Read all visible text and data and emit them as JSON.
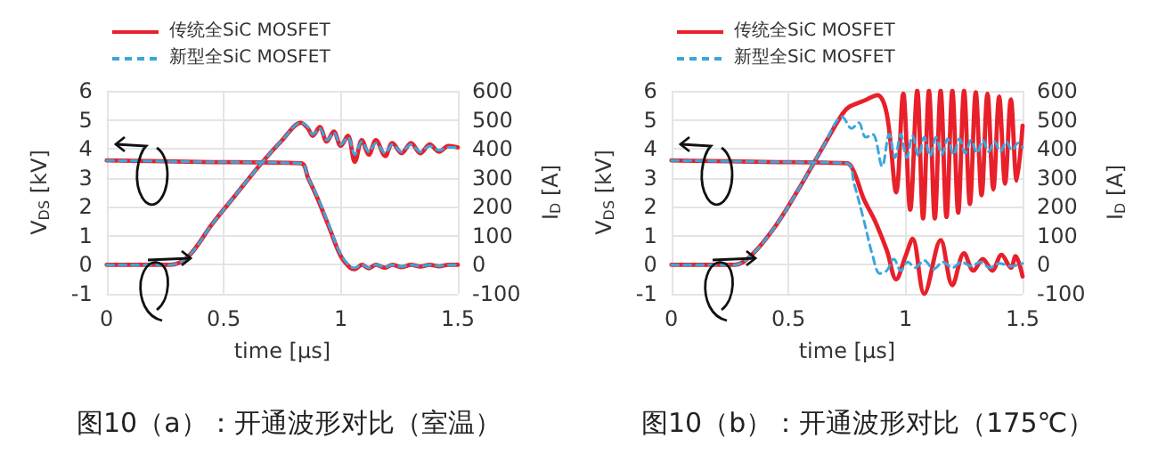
{
  "chart_data": [
    {
      "type": "line",
      "title": "图10（a）：开通波形对比（室温）",
      "xlabel": "time [µs]",
      "ylabel": "V$_{DS}$ [kV]",
      "y2label": "I$_{D}$ [A]",
      "xlim": [
        0,
        1.5
      ],
      "xticks": [
        0,
        0.5,
        1,
        1.5
      ],
      "ylim": [
        -1,
        6
      ],
      "yticks": [
        -1,
        0,
        1,
        2,
        3,
        4,
        5,
        6
      ],
      "y2lim": [
        -100,
        600
      ],
      "y2ticks": [
        -100,
        0,
        100,
        200,
        300,
        400,
        500,
        600
      ],
      "grid": true,
      "legend": "top left",
      "marker": "none",
      "series": [
        {
          "name": "传统全SiC MOSFET",
          "color": "#e8202a",
          "line_style": "solid",
          "x": [
            0,
            0.4,
            0.83,
            0.86,
            0.9,
            0.95,
            1.0,
            1.04,
            1.06,
            1.09,
            1.12,
            1.15,
            1.19,
            1.22,
            1.26,
            1.3,
            1.34,
            1.38,
            1.42,
            1.46,
            1.5
          ],
          "values": [
            3.6,
            3.55,
            3.5,
            3.0,
            2.3,
            1.3,
            0.3,
            -0.1,
            -0.15,
            0.0,
            -0.12,
            0.0,
            -0.1,
            0.0,
            -0.08,
            0.0,
            -0.06,
            0.0,
            -0.05,
            0.0,
            0.0
          ]
        },
        {
          "name": "新型全SiC MOSFET",
          "color": "#3aa6dd",
          "line_style": "dashed",
          "x": [
            0,
            0.4,
            0.83,
            0.86,
            0.9,
            0.95,
            1.0,
            1.04,
            1.06,
            1.09,
            1.12,
            1.15,
            1.19,
            1.22,
            1.26,
            1.3,
            1.34,
            1.38,
            1.42,
            1.46,
            1.5
          ],
          "values": [
            3.6,
            3.55,
            3.5,
            3.0,
            2.35,
            1.35,
            0.35,
            -0.05,
            -0.1,
            0.0,
            -0.1,
            0.0,
            -0.08,
            0.0,
            -0.06,
            0.0,
            -0.05,
            0.0,
            -0.04,
            0.0,
            0.0
          ]
        },
        {
          "color": "#e8202a",
          "line_style": "solid",
          "axis": "y2",
          "x": [
            0,
            0.27,
            0.35,
            0.45,
            0.55,
            0.65,
            0.75,
            0.83,
            0.86,
            0.88,
            0.91,
            0.94,
            0.97,
            1.0,
            1.03,
            1.06,
            1.09,
            1.12,
            1.15,
            1.19,
            1.22,
            1.26,
            1.3,
            1.34,
            1.38,
            1.42,
            1.46,
            1.5
          ],
          "values": [
            0,
            0,
            30,
            140,
            240,
            340,
            430,
            490,
            470,
            445,
            475,
            425,
            460,
            410,
            445,
            355,
            430,
            380,
            430,
            375,
            420,
            385,
            420,
            385,
            415,
            390,
            410,
            405
          ]
        },
        {
          "color": "#3aa6dd",
          "line_style": "dashed",
          "axis": "y2",
          "x": [
            0,
            0.27,
            0.35,
            0.45,
            0.55,
            0.65,
            0.75,
            0.83,
            0.86,
            0.88,
            0.91,
            0.94,
            0.97,
            1.0,
            1.03,
            1.06,
            1.09,
            1.12,
            1.15,
            1.19,
            1.22,
            1.26,
            1.3,
            1.34,
            1.38,
            1.42,
            1.46,
            1.5
          ],
          "values": [
            0,
            0,
            30,
            140,
            240,
            340,
            430,
            490,
            475,
            450,
            470,
            430,
            455,
            415,
            440,
            380,
            425,
            390,
            420,
            385,
            415,
            390,
            415,
            390,
            410,
            395,
            405,
            405
          ]
        }
      ]
    },
    {
      "type": "line",
      "title": "图10（b）：开通波形对比（175℃）",
      "xlabel": "time [µs]",
      "ylabel": "V$_{DS}$ [kV]",
      "y2label": "I$_{D}$ [A]",
      "xlim": [
        0,
        1.5
      ],
      "xticks": [
        0,
        0.5,
        1,
        1.5
      ],
      "ylim": [
        -1,
        6
      ],
      "yticks": [
        -1,
        0,
        1,
        2,
        3,
        4,
        5,
        6
      ],
      "y2lim": [
        -100,
        600
      ],
      "y2ticks": [
        -100,
        0,
        100,
        200,
        300,
        400,
        500,
        600
      ],
      "grid": true,
      "legend": "top left",
      "marker": "none",
      "series": [
        {
          "name": "传统全SiC MOSFET",
          "color": "#e8202a",
          "line_style": "solid",
          "x": [
            0,
            0.4,
            0.75,
            0.78,
            0.82,
            0.87,
            0.92,
            0.96,
            1.0,
            1.03,
            1.08,
            1.15,
            1.2,
            1.25,
            1.29,
            1.33,
            1.37,
            1.41,
            1.45,
            1.47,
            1.5
          ],
          "values": [
            3.6,
            3.55,
            3.5,
            3.2,
            2.3,
            1.5,
            0.5,
            -0.5,
            0.3,
            0.9,
            -1.0,
            0.85,
            -0.7,
            0.4,
            -0.2,
            0.2,
            -0.2,
            0.35,
            -0.1,
            0.3,
            -0.4
          ]
        },
        {
          "name": "新型全SiC MOSFET",
          "color": "#3aa6dd",
          "line_style": "dashed",
          "x": [
            0,
            0.4,
            0.75,
            0.78,
            0.82,
            0.86,
            0.89,
            0.92,
            0.95,
            0.98,
            1.01,
            1.04,
            1.08,
            1.12,
            1.16,
            1.2,
            1.24,
            1.28,
            1.32,
            1.36,
            1.4,
            1.45,
            1.5
          ],
          "values": [
            3.6,
            3.55,
            3.5,
            2.8,
            1.6,
            0.3,
            -0.3,
            -0.2,
            0.2,
            -0.2,
            0.1,
            -0.1,
            0.15,
            -0.15,
            0.1,
            -0.1,
            0.1,
            -0.05,
            0.1,
            -0.1,
            0.05,
            -0.05,
            0.05
          ]
        },
        {
          "color": "#e8202a",
          "line_style": "solid",
          "axis": "y2",
          "x": [
            0,
            0.27,
            0.35,
            0.45,
            0.55,
            0.65,
            0.73,
            0.76,
            0.82,
            0.88,
            0.92,
            0.96,
            0.99,
            1.02,
            1.05,
            1.075,
            1.1,
            1.125,
            1.15,
            1.175,
            1.2,
            1.225,
            1.25,
            1.275,
            1.3,
            1.325,
            1.35,
            1.375,
            1.4,
            1.425,
            1.45,
            1.475,
            1.5
          ],
          "values": [
            0,
            0,
            40,
            140,
            270,
            410,
            520,
            545,
            565,
            585,
            520,
            250,
            590,
            190,
            600,
            160,
            600,
            160,
            600,
            165,
            600,
            180,
            600,
            210,
            595,
            240,
            590,
            260,
            580,
            280,
            570,
            290,
            480
          ]
        },
        {
          "color": "#3aa6dd",
          "line_style": "dashed",
          "axis": "y2",
          "x": [
            0,
            0.27,
            0.35,
            0.45,
            0.55,
            0.65,
            0.73,
            0.77,
            0.8,
            0.83,
            0.86,
            0.9,
            0.93,
            0.955,
            0.98,
            1.005,
            1.03,
            1.055,
            1.08,
            1.105,
            1.13,
            1.155,
            1.18,
            1.205,
            1.23,
            1.255,
            1.28,
            1.305,
            1.33,
            1.355,
            1.38,
            1.405,
            1.43,
            1.455,
            1.48,
            1.5
          ],
          "values": [
            0,
            0,
            40,
            140,
            270,
            410,
            510,
            470,
            490,
            440,
            450,
            340,
            450,
            370,
            450,
            370,
            445,
            375,
            440,
            375,
            440,
            380,
            435,
            380,
            435,
            385,
            430,
            385,
            430,
            390,
            425,
            390,
            425,
            395,
            420,
            405
          ]
        }
      ]
    }
  ]
}
